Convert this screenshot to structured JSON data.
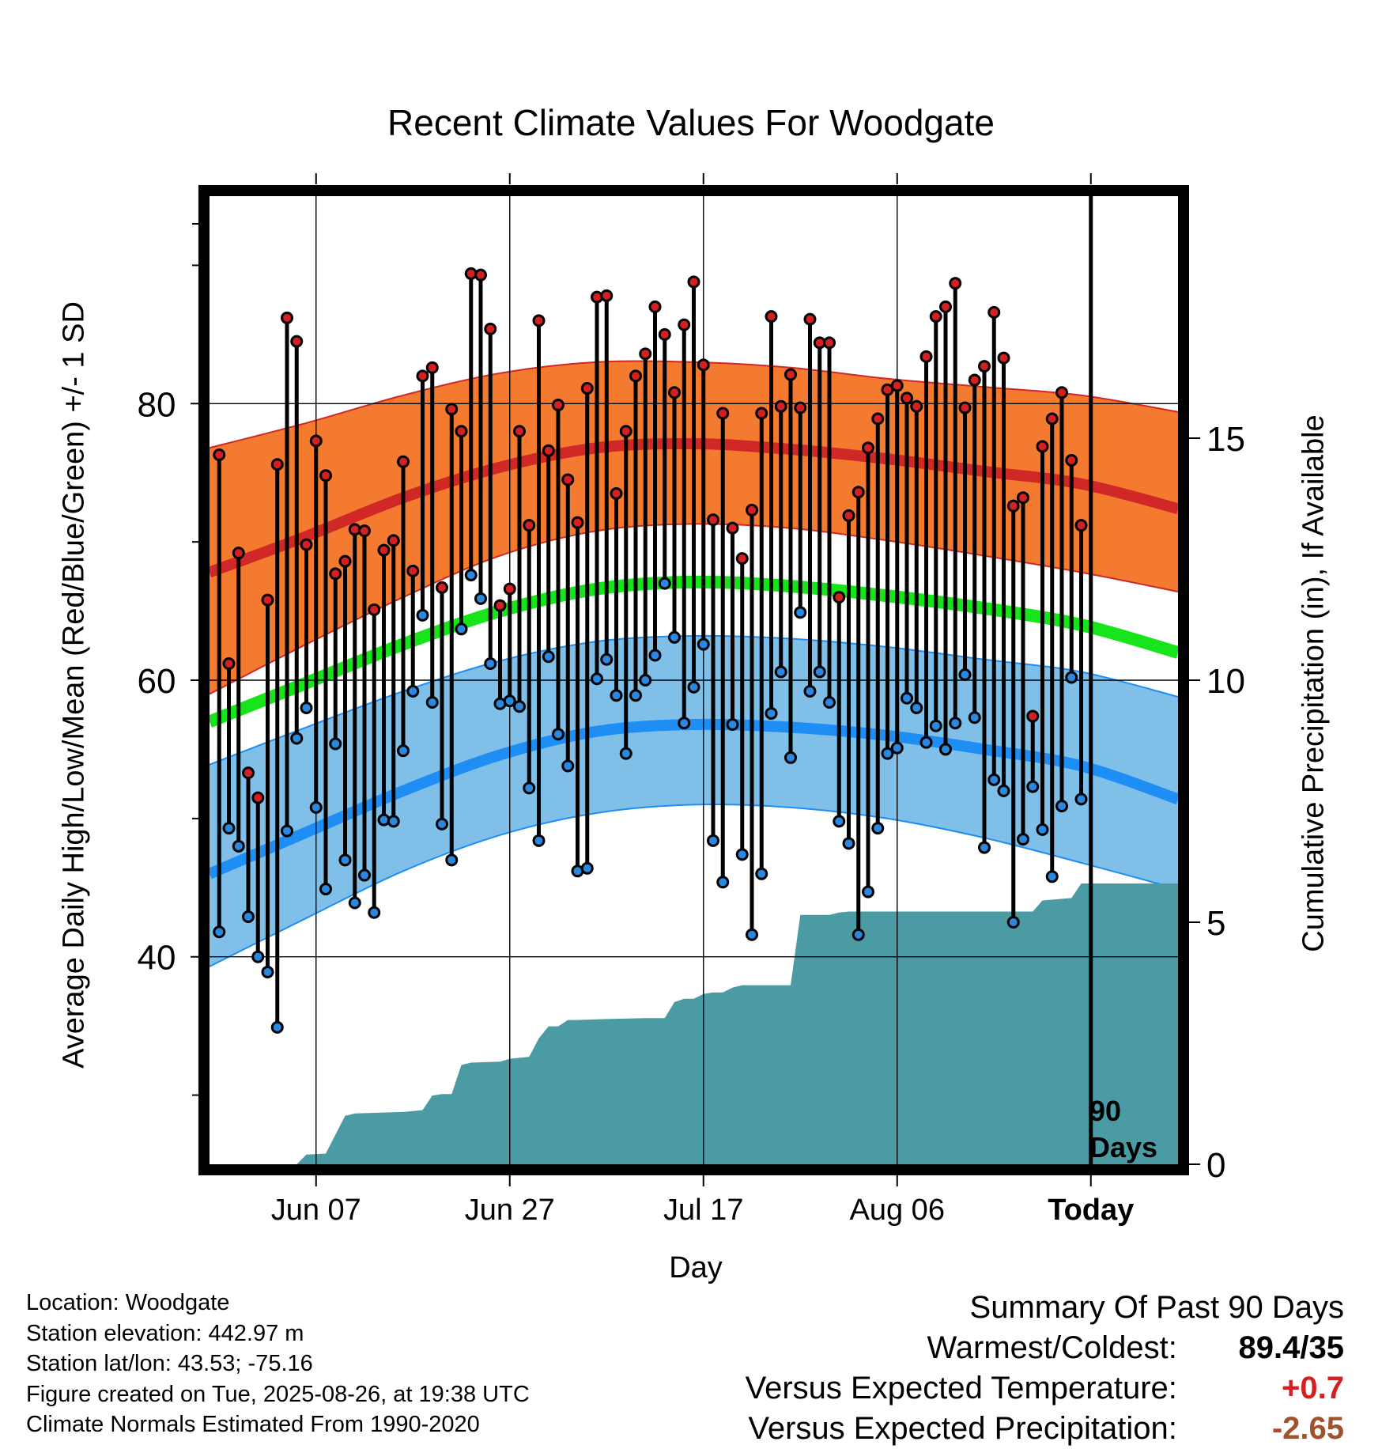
{
  "title": "Recent Climate Values For Woodgate",
  "left_axis_label": "Average Daily High/Low/Mean (Red/Blue/Green) +/- 1 SD",
  "right_axis_label": "Cumulative Precipitation (in), If Available",
  "x_axis_label": "Day",
  "days_label": {
    "line1": "90",
    "line2": "Days"
  },
  "info": {
    "location": "Location: Woodgate",
    "elevation": "Station elevation: 442.97 m",
    "latlon": "Station lat/lon: 43.53; -75.16",
    "created": "Figure created on Tue, 2025-08-26, at 19:38 UTC",
    "normals": "Climate Normals Estimated From 1990-2020"
  },
  "summary": {
    "heading": "Summary Of Past 90 Days",
    "warmest_coldest_label": "Warmest/Coldest:",
    "warmest_coldest_value": "89.4/35",
    "temp_label": "Versus Expected Temperature:",
    "temp_value": "+0.7",
    "precip_label": "Versus Expected Precipitation:",
    "precip_value": "-2.65"
  },
  "colors": {
    "high_band": "#f47a30",
    "high_mean_line": "#d02727",
    "low_band": "#7fbfe8",
    "low_mean_line": "#1e8ef5",
    "mean_line": "#17e41a",
    "precip_fill": "#4a9ba4",
    "high_marker": "#d42020",
    "low_marker": "#2a88e0"
  },
  "chart_data": {
    "type": "line",
    "x_unit": "day (0 = May 28, 2025; 90 = Today, Aug 26)",
    "x_ticks": [
      {
        "day": 10,
        "label": "Jun 07"
      },
      {
        "day": 30,
        "label": "Jun 27"
      },
      {
        "day": 50,
        "label": "Jul 17"
      },
      {
        "day": 70,
        "label": "Aug 06"
      },
      {
        "day": 90,
        "label": "Today"
      }
    ],
    "x_range": [
      -1,
      99
    ],
    "today_day": 90,
    "left_axis": {
      "ylim": [
        25,
        95
      ],
      "tick_labels": [
        40,
        60,
        80
      ],
      "minor_ticks": [
        30,
        50,
        70,
        90
      ]
    },
    "right_axis": {
      "range": [
        0,
        20
      ],
      "ticks": [
        0,
        5,
        10,
        15
      ]
    },
    "normals_days": [
      -1,
      9,
      19,
      29,
      39,
      49,
      59,
      69,
      79,
      89,
      99
    ],
    "normal_high_upper": [
      76.8,
      78.6,
      80.6,
      82.2,
      83.0,
      83.0,
      82.6,
      81.8,
      81.2,
      80.6,
      79.4
    ],
    "normal_high_mean": [
      67.8,
      70.4,
      73.2,
      75.4,
      76.8,
      77.1,
      76.7,
      76.0,
      75.1,
      74.2,
      72.4
    ],
    "normal_high_lower": [
      59.0,
      62.6,
      66.0,
      69.0,
      70.8,
      71.3,
      71.0,
      70.1,
      69.0,
      67.8,
      66.4
    ],
    "normal_mean": [
      57.0,
      59.8,
      62.6,
      65.0,
      66.6,
      67.1,
      66.8,
      66.1,
      65.2,
      64.0,
      62.0
    ],
    "normal_low_upper": [
      53.9,
      56.6,
      59.2,
      61.4,
      62.8,
      63.2,
      63.0,
      62.4,
      61.5,
      60.6,
      58.8
    ],
    "normal_low_mean": [
      46.0,
      49.0,
      52.0,
      54.6,
      56.3,
      56.8,
      56.6,
      56.0,
      55.0,
      53.8,
      51.4
    ],
    "normal_low_lower": [
      39.3,
      42.8,
      46.2,
      48.8,
      50.4,
      51.0,
      50.8,
      50.0,
      48.6,
      46.8,
      44.9
    ],
    "daily_high": [
      76.3,
      61.2,
      69.2,
      53.3,
      51.5,
      65.8,
      75.6,
      86.2,
      84.5,
      69.8,
      77.3,
      74.8,
      67.7,
      68.6,
      70.9,
      70.8,
      65.1,
      69.4,
      70.1,
      75.8,
      67.9,
      82.0,
      82.6,
      66.7,
      79.6,
      78.0,
      89.4,
      89.3,
      85.4,
      65.4,
      66.6,
      78.0,
      71.2,
      86.0,
      76.6,
      79.9,
      74.5,
      71.4,
      81.1,
      87.7,
      87.8,
      73.5,
      78.0,
      82.0,
      83.6,
      87.0,
      85.0,
      80.8,
      85.7,
      88.8,
      82.8,
      71.6,
      79.3,
      71.0,
      68.8,
      72.3,
      79.3,
      86.3,
      79.8,
      82.1,
      79.7,
      86.1,
      84.4,
      84.4,
      66.0,
      71.9,
      73.6,
      76.8,
      78.9,
      81.0,
      81.3,
      80.4,
      79.8,
      83.4,
      86.3,
      87.0,
      88.7,
      79.7,
      81.7,
      82.7,
      86.6,
      83.3,
      72.6,
      73.2,
      57.4,
      76.9,
      78.9,
      80.8,
      75.9,
      71.2
    ],
    "daily_low": [
      41.8,
      49.3,
      48.0,
      42.9,
      40.0,
      38.9,
      34.9,
      49.1,
      55.8,
      58.0,
      50.8,
      44.9,
      55.4,
      47.0,
      43.9,
      45.9,
      43.2,
      49.9,
      49.8,
      54.9,
      59.2,
      64.7,
      58.4,
      49.6,
      47.0,
      63.7,
      67.6,
      65.9,
      61.2,
      58.3,
      58.5,
      58.1,
      52.2,
      48.4,
      61.7,
      56.1,
      53.8,
      46.2,
      46.4,
      60.1,
      61.5,
      58.9,
      54.7,
      58.9,
      60.0,
      61.8,
      67.0,
      63.1,
      56.9,
      59.5,
      62.6,
      48.4,
      45.4,
      56.8,
      47.4,
      41.6,
      46.0,
      57.6,
      60.6,
      54.4,
      64.9,
      59.2,
      60.6,
      58.4,
      49.8,
      48.2,
      41.6,
      44.7,
      49.3,
      54.7,
      55.1,
      58.7,
      58.0,
      55.5,
      56.7,
      55.0,
      56.9,
      60.4,
      57.3,
      47.9,
      52.8,
      52.0,
      42.5,
      48.5,
      52.3,
      49.2,
      45.8,
      50.9,
      60.2,
      51.4
    ],
    "precip_cumulative": [
      [
        0,
        0
      ],
      [
        8,
        0
      ],
      [
        9,
        0.2
      ],
      [
        11,
        0.22
      ],
      [
        13,
        1.0
      ],
      [
        14,
        1.05
      ],
      [
        19,
        1.08
      ],
      [
        20,
        1.1
      ],
      [
        21,
        1.12
      ],
      [
        22,
        1.42
      ],
      [
        23,
        1.45
      ],
      [
        24,
        1.45
      ],
      [
        25,
        2.05
      ],
      [
        26,
        2.1
      ],
      [
        29,
        2.12
      ],
      [
        30,
        2.18
      ],
      [
        31,
        2.2
      ],
      [
        32,
        2.22
      ],
      [
        33,
        2.6
      ],
      [
        34,
        2.85
      ],
      [
        35,
        2.85
      ],
      [
        36,
        2.98
      ],
      [
        37,
        2.98
      ],
      [
        40,
        3.0
      ],
      [
        44,
        3.02
      ],
      [
        46,
        3.02
      ],
      [
        47,
        3.35
      ],
      [
        48,
        3.42
      ],
      [
        49,
        3.42
      ],
      [
        50,
        3.52
      ],
      [
        51,
        3.55
      ],
      [
        52,
        3.55
      ],
      [
        53,
        3.65
      ],
      [
        54,
        3.7
      ],
      [
        59,
        3.7
      ],
      [
        60,
        5.15
      ],
      [
        61,
        5.15
      ],
      [
        63,
        5.15
      ],
      [
        64,
        5.2
      ],
      [
        65,
        5.22
      ],
      [
        70,
        5.22
      ],
      [
        80,
        5.22
      ],
      [
        84,
        5.22
      ],
      [
        85,
        5.45
      ],
      [
        88,
        5.5
      ],
      [
        89,
        5.8
      ],
      [
        90,
        5.8
      ],
      [
        99,
        5.8
      ]
    ]
  }
}
